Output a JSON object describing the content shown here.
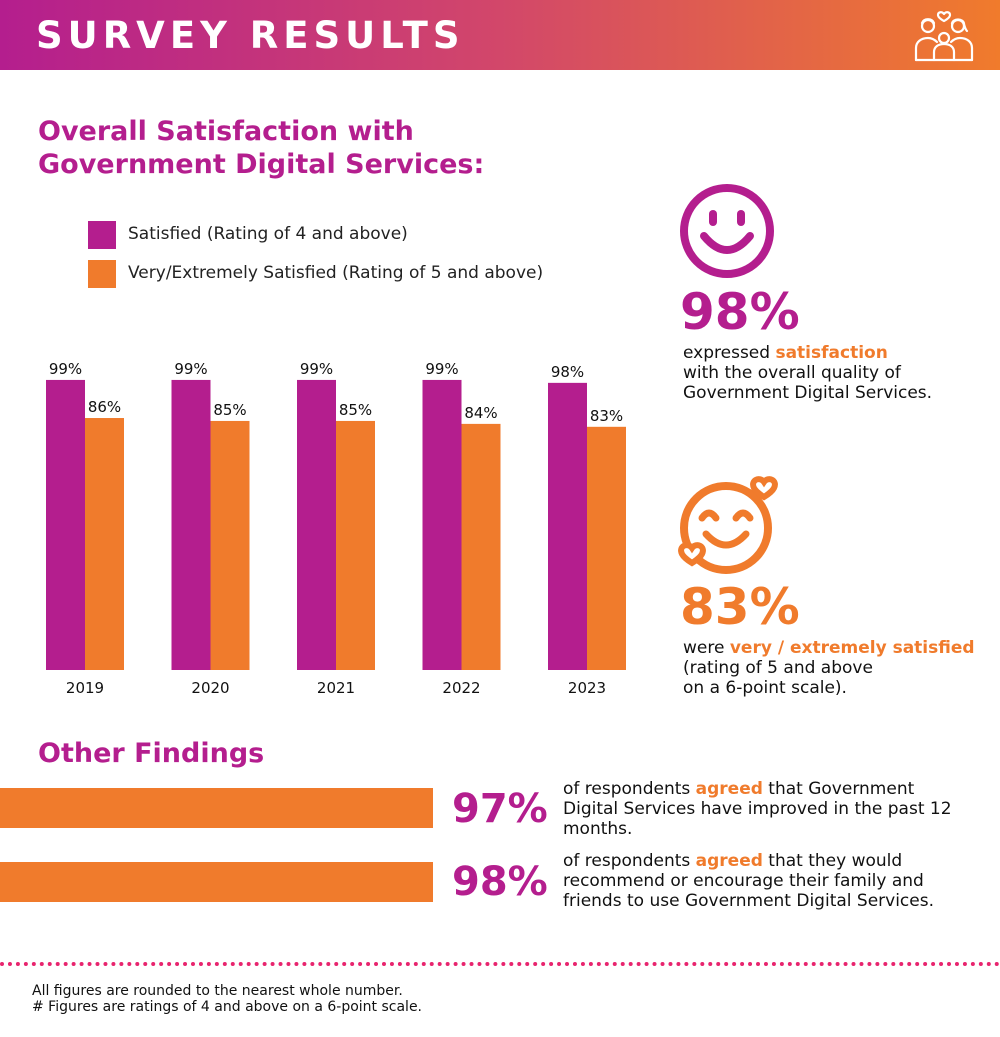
{
  "header": {
    "title": "SURVEY RESULTS",
    "icon": "family-icon"
  },
  "section1": {
    "title_line1": "Overall Satisfaction with",
    "title_line2": "Government Digital Services:"
  },
  "colors": {
    "purple": "#b41e8e",
    "orange": "#f07b2c",
    "dots": "#e8246e"
  },
  "chart_data": {
    "type": "bar",
    "categories": [
      "2019",
      "2020",
      "2021",
      "2022",
      "2023"
    ],
    "series": [
      {
        "name": "Satisfied (Rating of 4 and above)",
        "values": [
          99,
          99,
          99,
          99,
          98
        ],
        "color": "#b41e8e"
      },
      {
        "name": "Very/Extremely Satisfied (Rating of 5 and above)",
        "values": [
          86,
          85,
          85,
          84,
          83
        ],
        "color": "#f07b2c"
      }
    ],
    "value_suffix": "%",
    "title": "Overall Satisfaction with Government Digital Services:",
    "xlabel": "",
    "ylabel": "",
    "ylim": [
      0,
      100
    ],
    "grid": false,
    "legend": "top-left"
  },
  "stat1": {
    "icon": "smiley-face-icon",
    "value": "98%",
    "line1_pre": "expressed ",
    "line1_hl": "satisfaction",
    "line2": "with the overall quality of",
    "line3": "Government Digital Services."
  },
  "stat2": {
    "icon": "smiley-hearts-icon",
    "value": "83%",
    "line1_pre": "were ",
    "line1_hl": "very / extremely satisfied",
    "line2": "(rating of 5 and above",
    "line3": "on a 6-point scale)."
  },
  "section2": {
    "title": "Other Findings"
  },
  "findings": [
    {
      "value": "97%",
      "pre": "of respondents ",
      "hl": "agreed",
      "post": " that Government Digital Services have improved in the past 12 months."
    },
    {
      "value": "98%",
      "pre": "of respondents ",
      "hl": "agreed",
      "post": " that they would recommend or encourage their family and friends to use Government Digital Services."
    }
  ],
  "footnotes": {
    "line1": "All figures are rounded to the nearest whole number.",
    "line2": "# Figures are ratings of 4 and above on a 6-point scale."
  }
}
